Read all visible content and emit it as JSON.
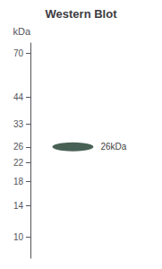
{
  "chart_data": {
    "type": "scatter",
    "title": "Western Blot",
    "ylabel": "kDa",
    "values": [
      26
    ],
    "annotation": "26kDa",
    "color": "#1a3a2a",
    "ylim": [
      8,
      78
    ],
    "yticks": [
      70,
      44,
      33,
      26,
      22,
      18,
      14,
      10
    ],
    "log": "y",
    "grid": false,
    "tick_labels": "y"
  }
}
